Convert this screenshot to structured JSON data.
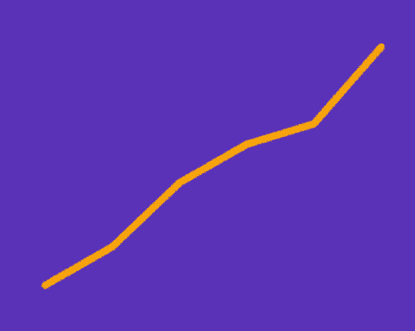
{
  "theme": {
    "background": "#5a32b8",
    "axis_color": "#f4f2f8",
    "series_color": "#f7a30a"
  },
  "chart_data": {
    "type": "line",
    "x": [
      0,
      1,
      2,
      3,
      4,
      5
    ],
    "series": [
      {
        "values": [
          0.05,
          0.2,
          0.45,
          0.6,
          0.68,
          0.98
        ]
      }
    ],
    "xlim": [
      0,
      5
    ],
    "ylim": [
      0,
      1
    ],
    "axes_visible": [
      "left",
      "bottom"
    ],
    "tick_labels": "none",
    "grid": false,
    "legend": "none",
    "line_style": "rough chalk-like stroke"
  }
}
